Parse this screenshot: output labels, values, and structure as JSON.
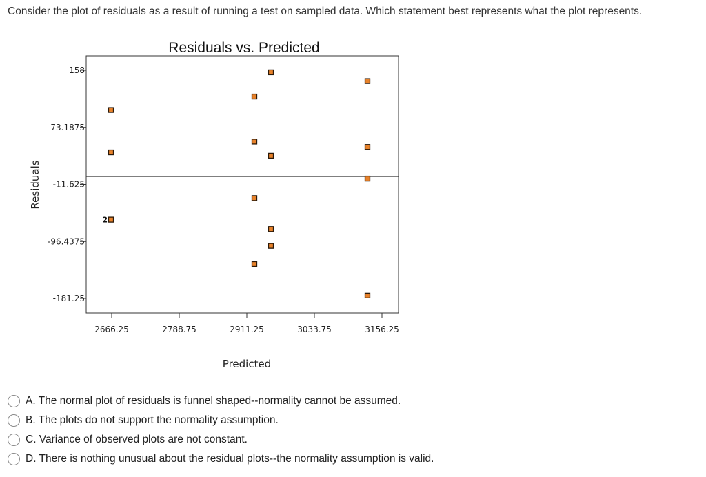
{
  "question": "Consider the plot of residuals as a result of running a test on sampled data. Which statement best represents what the plot represents.",
  "options": [
    {
      "label": "A. The normal plot of residuals is funnel shaped--normality cannot be assumed."
    },
    {
      "label": "B. The plots do not support the normality assumption."
    },
    {
      "label": "C. Variance of observed plots are not constant."
    },
    {
      "label": "D. There is nothing unusual about the residual plots--the normality assumption is valid."
    }
  ],
  "chart_data": {
    "type": "scatter",
    "title": "Residuals vs. Predicted",
    "xlabel": "Predicted",
    "ylabel": "Residuals",
    "xlim": [
      2666.25,
      3156.25
    ],
    "ylim": [
      -181.25,
      158
    ],
    "x_ticks": [
      "2666.25",
      "2788.75",
      "2911.25",
      "3033.75",
      "3156.25"
    ],
    "y_ticks": [
      "158",
      "73.1875",
      "-11.625",
      "-96.4375",
      "-181.25"
    ],
    "reference_line_y": 0,
    "marker_color": "#e8822a",
    "points": [
      {
        "x": 2665,
        "y": 99
      },
      {
        "x": 2665,
        "y": 36
      },
      {
        "x": 2665,
        "y": -64,
        "label": "2"
      },
      {
        "x": 2925,
        "y": 119
      },
      {
        "x": 2925,
        "y": 52
      },
      {
        "x": 2925,
        "y": -32
      },
      {
        "x": 2925,
        "y": -130
      },
      {
        "x": 2955,
        "y": 155
      },
      {
        "x": 2955,
        "y": 31
      },
      {
        "x": 2955,
        "y": -78
      },
      {
        "x": 2955,
        "y": -103
      },
      {
        "x": 3130,
        "y": 142
      },
      {
        "x": 3130,
        "y": 44
      },
      {
        "x": 3130,
        "y": -3
      },
      {
        "x": 3130,
        "y": -177
      }
    ]
  }
}
